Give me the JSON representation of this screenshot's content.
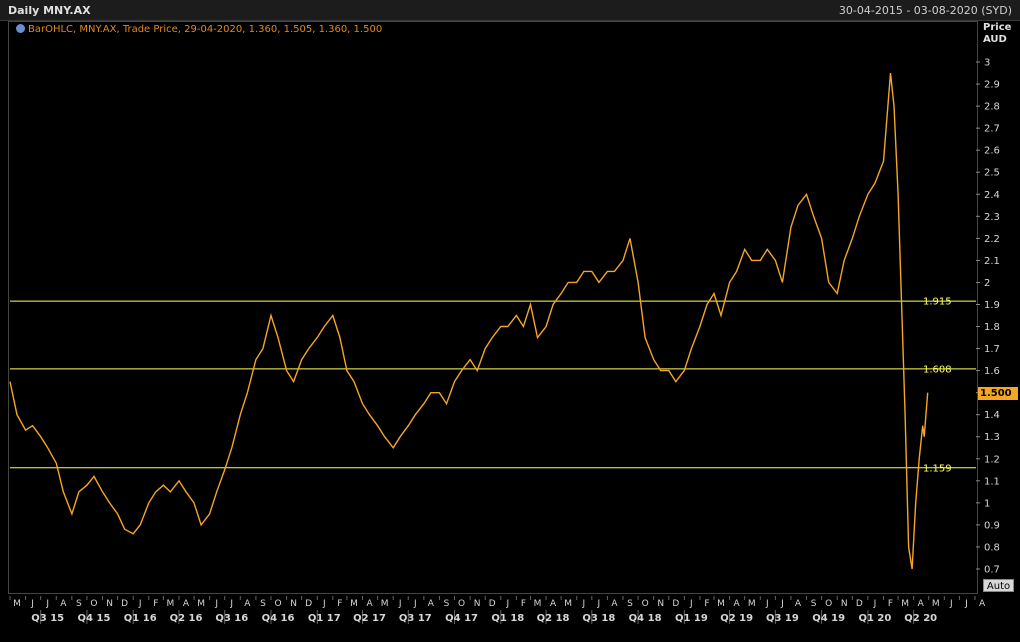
{
  "header": {
    "title": "Daily MNY.AX",
    "date_range": "30-04-2015 - 03-08-2020 (SYD)"
  },
  "legend": {
    "icon": "clock-icon",
    "text": "BarOHLC, MNY.AX, Trade Price, 29-04-2020, 1.360, 1.505, 1.360, 1.500"
  },
  "axis_unit": {
    "line1": "Price",
    "line2": "AUD"
  },
  "last_price": "1.500",
  "auto_button": "Auto",
  "colors": {
    "price": "#f5a623",
    "hline": "#ffff55",
    "background": "#000000"
  },
  "chart_data": {
    "type": "line",
    "y_ticks": [
      "0.7",
      "0.8",
      "0.9",
      "1",
      "1.1",
      "1.2",
      "1.3",
      "1.4",
      "1.5",
      "1.6",
      "1.7",
      "1.8",
      "1.9",
      "2",
      "2.1",
      "2.2",
      "2.3",
      "2.4",
      "2.5",
      "2.6",
      "2.7",
      "2.8",
      "2.9",
      "3"
    ],
    "ylim": [
      0.65,
      3.1
    ],
    "xlim": [
      "2015-05-01",
      "2020-08-03"
    ],
    "month_labels": [
      "M",
      "J",
      "J",
      "A",
      "S",
      "O",
      "N",
      "D",
      "J",
      "F",
      "M",
      "A",
      "M",
      "J",
      "J",
      "A",
      "S",
      "O",
      "N",
      "D",
      "J",
      "F",
      "M",
      "A",
      "M",
      "J",
      "J",
      "A",
      "S",
      "O",
      "N",
      "D",
      "J",
      "F",
      "M",
      "A",
      "M",
      "J",
      "J",
      "A",
      "S",
      "O",
      "N",
      "D",
      "J",
      "F",
      "M",
      "A",
      "M",
      "J",
      "J",
      "A",
      "S",
      "O",
      "N",
      "D",
      "J",
      "F",
      "M",
      "A",
      "M",
      "J",
      "J",
      "A"
    ],
    "quarter_labels": [
      "Q3 15",
      "Q4 15",
      "Q1 16",
      "Q2 16",
      "Q3 16",
      "Q4 16",
      "Q1 17",
      "Q2 17",
      "Q3 17",
      "Q4 17",
      "Q1 18",
      "Q2 18",
      "Q3 18",
      "Q4 18",
      "Q1 19",
      "Q2 19",
      "Q3 19",
      "Q4 19",
      "Q1 20",
      "Q2 20"
    ],
    "horizontal_lines": [
      {
        "label": "1.915",
        "value": 1.915
      },
      {
        "label": "1.608",
        "value": 1.608
      },
      {
        "label": "1.159",
        "value": 1.159
      }
    ],
    "series": [
      {
        "x": [
          "2015-05-01",
          "2015-05-15",
          "2015-06-01",
          "2015-06-15",
          "2015-07-01",
          "2015-07-15",
          "2015-08-01",
          "2015-08-15",
          "2015-09-01",
          "2015-09-15",
          "2015-10-01",
          "2015-10-15",
          "2015-11-01",
          "2015-11-15",
          "2015-12-01",
          "2015-12-15",
          "2016-01-01",
          "2016-01-15",
          "2016-02-01",
          "2016-02-15",
          "2016-03-01",
          "2016-03-15",
          "2016-04-01",
          "2016-04-15",
          "2016-05-01",
          "2016-05-15",
          "2016-06-01",
          "2016-06-15",
          "2016-07-01",
          "2016-07-15",
          "2016-08-01",
          "2016-08-15",
          "2016-09-01",
          "2016-09-15",
          "2016-10-01",
          "2016-10-15",
          "2016-11-01",
          "2016-11-15",
          "2016-12-01",
          "2016-12-15",
          "2017-01-01",
          "2017-01-15",
          "2017-02-01",
          "2017-02-15",
          "2017-03-01",
          "2017-03-15",
          "2017-04-01",
          "2017-04-15",
          "2017-05-01",
          "2017-05-15",
          "2017-06-01",
          "2017-06-15",
          "2017-07-01",
          "2017-07-15",
          "2017-08-01",
          "2017-08-15",
          "2017-09-01",
          "2017-09-15",
          "2017-10-01",
          "2017-10-15",
          "2017-11-01",
          "2017-11-15",
          "2017-12-01",
          "2017-12-15",
          "2018-01-01",
          "2018-01-15",
          "2018-02-01",
          "2018-02-15",
          "2018-03-01",
          "2018-03-15",
          "2018-04-01",
          "2018-04-15",
          "2018-05-01",
          "2018-05-15",
          "2018-06-01",
          "2018-06-15",
          "2018-07-01",
          "2018-07-15",
          "2018-08-01",
          "2018-08-15",
          "2018-09-01",
          "2018-09-15",
          "2018-10-01",
          "2018-10-15",
          "2018-11-01",
          "2018-11-15",
          "2018-12-01",
          "2018-12-15",
          "2019-01-01",
          "2019-01-15",
          "2019-02-01",
          "2019-02-15",
          "2019-03-01",
          "2019-03-15",
          "2019-04-01",
          "2019-04-15",
          "2019-05-01",
          "2019-05-15",
          "2019-06-01",
          "2019-06-15",
          "2019-07-01",
          "2019-07-15",
          "2019-08-01",
          "2019-08-15",
          "2019-09-01",
          "2019-09-15",
          "2019-10-01",
          "2019-10-15",
          "2019-11-01",
          "2019-11-15",
          "2019-12-01",
          "2019-12-15",
          "2020-01-01",
          "2020-01-15",
          "2020-02-01",
          "2020-02-08",
          "2020-02-15",
          "2020-02-22",
          "2020-03-01",
          "2020-03-08",
          "2020-03-15",
          "2020-03-22",
          "2020-03-29",
          "2020-04-05",
          "2020-04-12",
          "2020-04-19",
          "2020-04-22",
          "2020-04-29"
        ],
        "y": [
          1.55,
          1.4,
          1.33,
          1.35,
          1.3,
          1.25,
          1.18,
          1.05,
          0.95,
          1.05,
          1.08,
          1.12,
          1.05,
          1.0,
          0.95,
          0.88,
          0.86,
          0.9,
          1.0,
          1.05,
          1.08,
          1.05,
          1.1,
          1.05,
          1.0,
          0.9,
          0.95,
          1.05,
          1.15,
          1.25,
          1.4,
          1.5,
          1.65,
          1.7,
          1.85,
          1.75,
          1.6,
          1.55,
          1.65,
          1.7,
          1.75,
          1.8,
          1.85,
          1.75,
          1.6,
          1.55,
          1.45,
          1.4,
          1.35,
          1.3,
          1.25,
          1.3,
          1.35,
          1.4,
          1.45,
          1.5,
          1.5,
          1.45,
          1.55,
          1.6,
          1.65,
          1.6,
          1.7,
          1.75,
          1.8,
          1.8,
          1.85,
          1.8,
          1.9,
          1.75,
          1.8,
          1.9,
          1.95,
          2.0,
          2.0,
          2.05,
          2.05,
          2.0,
          2.05,
          2.05,
          2.1,
          2.2,
          2.0,
          1.75,
          1.65,
          1.6,
          1.6,
          1.55,
          1.6,
          1.7,
          1.8,
          1.9,
          1.95,
          1.85,
          2.0,
          2.05,
          2.15,
          2.1,
          2.1,
          2.15,
          2.1,
          2.0,
          2.25,
          2.35,
          2.4,
          2.3,
          2.2,
          2.0,
          1.95,
          2.1,
          2.2,
          2.3,
          2.4,
          2.45,
          2.55,
          2.75,
          2.95,
          2.8,
          2.4,
          1.9,
          1.4,
          0.8,
          0.7,
          1.0,
          1.2,
          1.35,
          1.3,
          1.5
        ]
      }
    ]
  }
}
